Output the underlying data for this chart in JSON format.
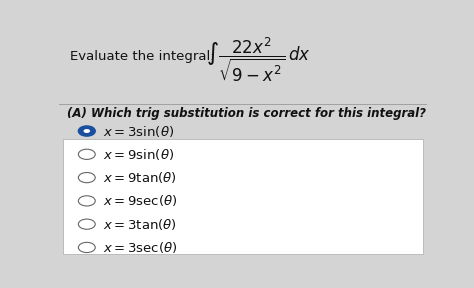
{
  "background_color": "#d4d4d4",
  "panel_color": "#ffffff",
  "title_text": "Evaluate the integral:",
  "question_label": "(A) Which trig substitution is correct for this integral?",
  "options": [
    "x = 3 sin(\\theta)",
    "x = 9 sin(\\theta)",
    "x = 9 tan(\\theta)",
    "x = 9 sec(\\theta)",
    "x = 3 tan(\\theta)",
    "x = 3 sec(\\theta)"
  ],
  "selected_index": 0,
  "selected_color": "#1a4fa0",
  "text_color": "#111111",
  "font_size_main": 9.5,
  "font_size_option": 9.5
}
